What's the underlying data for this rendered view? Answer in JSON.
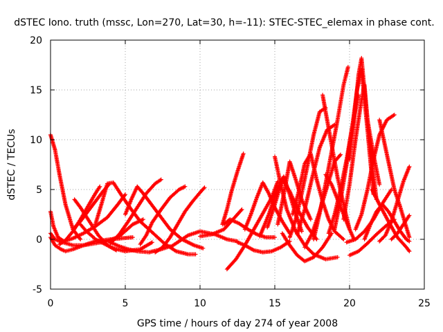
{
  "chart_data": {
    "type": "scatter",
    "title": "dSTEC Iono. truth (mssc, Lon=270, Lat=30, h=-11): STEC-STEC_elemax in phase cont.",
    "xlabel": "GPS time / hours of day 274 of year 2008",
    "ylabel": "dSTEC  / TECUs",
    "xlim": [
      0,
      25
    ],
    "ylim": [
      -5,
      20
    ],
    "xticks": [
      "0",
      "5",
      "10",
      "15",
      "20",
      "25"
    ],
    "yticks": [
      "-5",
      "0",
      "5",
      "10",
      "15",
      "20"
    ],
    "grid": true,
    "marker": "plus",
    "color": "#ff0000",
    "series": [
      {
        "x": [
          0.0,
          0.3,
          0.6,
          1.0,
          1.5,
          2.0
        ],
        "y": [
          10.5,
          9.0,
          6.5,
          3.5,
          1.0,
          0.0
        ]
      },
      {
        "x": [
          0.0,
          0.2,
          0.5,
          0.9,
          1.5,
          2.2,
          3.0,
          3.8,
          4.5,
          5.0
        ],
        "y": [
          2.8,
          1.3,
          0.2,
          -0.2,
          0.1,
          0.6,
          1.3,
          2.2,
          3.5,
          4.5
        ]
      },
      {
        "x": [
          0.0,
          0.3,
          0.7,
          1.0,
          1.5,
          2.2,
          3.0,
          4.0,
          5.5
        ],
        "y": [
          0.2,
          -0.6,
          -1.0,
          -1.2,
          -1.0,
          -0.6,
          -0.2,
          0.0,
          0.2
        ]
      },
      {
        "x": [
          0.0,
          0.3,
          0.8,
          1.5,
          2.2,
          3.0,
          3.8,
          4.6,
          5.5,
          6.2
        ],
        "y": [
          0.6,
          0.0,
          -0.3,
          -0.6,
          -0.6,
          -0.4,
          -0.2,
          0.3,
          1.5,
          2.0
        ]
      },
      {
        "x": [
          0.6,
          1.0,
          1.5,
          2.0,
          2.5,
          3.0,
          3.3
        ],
        "y": [
          -0.5,
          -0.1,
          0.8,
          2.0,
          3.3,
          4.6,
          5.3
        ]
      },
      {
        "x": [
          1.5,
          2.0,
          2.5,
          3.0,
          3.5,
          3.9
        ],
        "y": [
          1.0,
          1.8,
          2.8,
          3.8,
          4.8,
          5.5
        ]
      },
      {
        "x": [
          1.6,
          2.0,
          2.6,
          3.2,
          3.8,
          4.4
        ],
        "y": [
          4.0,
          3.2,
          1.8,
          0.4,
          -0.6,
          -1.1
        ]
      },
      {
        "x": [
          2.0,
          2.4,
          2.8,
          3.0,
          3.4,
          3.8,
          4.2,
          5.0,
          6.0,
          6.8
        ],
        "y": [
          1.5,
          0.8,
          0.3,
          0.0,
          -0.3,
          -0.6,
          -0.9,
          -1.2,
          -1.0,
          -0.3
        ]
      },
      {
        "x": [
          3.0,
          3.4,
          3.8,
          4.2,
          4.8,
          5.4,
          6.0,
          6.8,
          7.6,
          8.4,
          9.2,
          9.7
        ],
        "y": [
          1.5,
          3.5,
          5.6,
          5.7,
          4.3,
          3.0,
          1.8,
          0.7,
          -0.4,
          -1.2,
          -1.5,
          -1.5
        ]
      },
      {
        "x": [
          4.0,
          4.6,
          5.2,
          5.8,
          6.4,
          7.0,
          7.4
        ],
        "y": [
          -0.4,
          0.5,
          1.8,
          3.2,
          4.6,
          5.6,
          6.0
        ]
      },
      {
        "x": [
          4.0,
          4.6,
          5.2,
          5.8,
          6.6,
          7.4,
          8.0
        ],
        "y": [
          -0.3,
          -0.7,
          -1.0,
          -1.2,
          -1.3,
          -1.0,
          -0.7
        ]
      },
      {
        "x": [
          5.0,
          5.4,
          5.8,
          6.2,
          6.8,
          7.4,
          8.0,
          8.8,
          9.6,
          10.2
        ],
        "y": [
          2.5,
          4.0,
          5.3,
          4.6,
          3.4,
          2.2,
          1.0,
          0.0,
          -0.6,
          -0.9
        ]
      },
      {
        "x": [
          6.0,
          6.4,
          6.8,
          7.4,
          8.0,
          8.6,
          9.0
        ],
        "y": [
          -0.5,
          0.4,
          1.7,
          3.0,
          4.2,
          5.0,
          5.3
        ]
      },
      {
        "x": [
          7.0,
          7.5,
          8.0,
          8.5,
          9.0,
          9.5,
          10.0,
          10.3
        ],
        "y": [
          -1.3,
          -0.8,
          0.2,
          1.5,
          2.8,
          3.8,
          4.7,
          5.2
        ]
      },
      {
        "x": [
          8.0,
          8.6,
          9.2,
          10.0,
          11.0,
          11.8,
          12.5
        ],
        "y": [
          -0.8,
          -0.2,
          0.4,
          0.8,
          0.5,
          0.0,
          -0.2
        ]
      },
      {
        "x": [
          10.0,
          10.8,
          11.6,
          12.2,
          12.8
        ],
        "y": [
          0.3,
          0.5,
          1.0,
          2.0,
          3.0
        ]
      },
      {
        "x": [
          11.5,
          11.8,
          12.1,
          12.5,
          12.9
        ],
        "y": [
          1.5,
          3.0,
          4.8,
          6.8,
          8.6
        ]
      },
      {
        "x": [
          11.6,
          12.0,
          12.6,
          13.2,
          13.8,
          14.4,
          15.0
        ],
        "y": [
          1.5,
          2.0,
          1.6,
          1.0,
          0.5,
          0.2,
          0.2
        ]
      },
      {
        "x": [
          11.8,
          12.4,
          13.0,
          13.6,
          14.2,
          14.8,
          15.2
        ],
        "y": [
          -3.0,
          -2.0,
          -0.6,
          1.0,
          2.6,
          4.2,
          5.8
        ]
      },
      {
        "x": [
          12.5,
          13.0,
          13.6,
          14.2,
          14.8,
          15.4,
          16.0
        ],
        "y": [
          -0.3,
          -0.6,
          -1.1,
          -1.3,
          -1.2,
          -0.8,
          -0.2
        ]
      },
      {
        "x": [
          13.0,
          13.4,
          13.8,
          14.2,
          14.6,
          15.0,
          15.5,
          16.0
        ],
        "y": [
          1.0,
          2.5,
          4.2,
          5.7,
          4.6,
          3.2,
          1.8,
          0.6
        ]
      },
      {
        "x": [
          14.0,
          14.6,
          15.2,
          15.6,
          16.0,
          16.4,
          16.8
        ],
        "y": [
          0.3,
          2.5,
          5.2,
          6.3,
          4.5,
          2.5,
          0.8
        ]
      },
      {
        "x": [
          14.5,
          15.0,
          15.5,
          16.0,
          16.6,
          17.2,
          17.8
        ],
        "y": [
          1.2,
          3.5,
          6.0,
          4.8,
          2.8,
          1.2,
          0.0
        ]
      },
      {
        "x": [
          15.0,
          15.4,
          15.8,
          16.4,
          17.0,
          17.6,
          18.4,
          19.2
        ],
        "y": [
          8.3,
          5.5,
          3.0,
          0.8,
          -0.6,
          -1.5,
          -2.0,
          -1.8
        ]
      },
      {
        "x": [
          15.2,
          15.6,
          16.0,
          16.4,
          16.8,
          17.4
        ],
        "y": [
          1.5,
          4.5,
          7.8,
          6.0,
          4.0,
          2.0
        ]
      },
      {
        "x": [
          15.5,
          16.0,
          16.5,
          17.0,
          17.6,
          18.2,
          18.8
        ],
        "y": [
          0.6,
          -0.6,
          -1.6,
          -2.2,
          -1.8,
          -0.8,
          0.6
        ]
      },
      {
        "x": [
          16.0,
          16.4,
          16.8,
          17.2,
          17.6,
          18.0,
          18.4
        ],
        "y": [
          0.2,
          2.0,
          4.6,
          7.5,
          10.5,
          12.8,
          13.2
        ]
      },
      {
        "x": [
          16.2,
          16.6,
          17.0,
          17.4,
          17.8,
          18.2,
          18.6,
          19.0,
          19.6
        ],
        "y": [
          2.5,
          4.8,
          7.6,
          8.6,
          6.0,
          3.8,
          2.0,
          0.8,
          0.0
        ]
      },
      {
        "x": [
          16.5,
          17.0,
          17.5,
          18.0,
          18.5,
          19.0
        ],
        "y": [
          0.5,
          3.0,
          6.2,
          9.2,
          11.0,
          11.5
        ]
      },
      {
        "x": [
          17.0,
          17.5,
          18.0,
          18.6,
          19.0,
          19.4
        ],
        "y": [
          -0.8,
          0.6,
          2.8,
          5.8,
          7.8,
          8.5
        ]
      },
      {
        "x": [
          17.6,
          18.0,
          18.4,
          18.8,
          19.2,
          19.6,
          19.9
        ],
        "y": [
          0.0,
          2.6,
          5.6,
          8.8,
          12.0,
          15.5,
          17.3
        ]
      },
      {
        "x": [
          18.2,
          18.4,
          18.8,
          19.2,
          19.6,
          20.0
        ],
        "y": [
          14.5,
          12.8,
          9.5,
          6.2,
          3.5,
          1.0
        ]
      },
      {
        "x": [
          18.4,
          18.8,
          19.2,
          19.6,
          20.0,
          20.3
        ],
        "y": [
          6.5,
          5.5,
          4.0,
          2.5,
          1.0,
          0.0
        ]
      },
      {
        "x": [
          18.6,
          19.0,
          19.4,
          19.8,
          20.2,
          20.6
        ],
        "y": [
          0.6,
          2.5,
          5.0,
          8.0,
          11.5,
          14.5
        ]
      },
      {
        "x": [
          19.0,
          19.4,
          19.8,
          20.2,
          20.5,
          20.8,
          21.2,
          21.6
        ],
        "y": [
          1.0,
          4.0,
          7.5,
          11.5,
          15.0,
          17.0,
          11.0,
          4.5
        ]
      },
      {
        "x": [
          19.6,
          20.0,
          20.4,
          20.8,
          21.0,
          21.2,
          21.6,
          22.0
        ],
        "y": [
          2.0,
          5.5,
          10.0,
          14.0,
          15.5,
          12.0,
          8.5,
          5.5
        ]
      },
      {
        "x": [
          20.0,
          20.3,
          20.6,
          20.8,
          21.0,
          21.4,
          21.8
        ],
        "y": [
          8.0,
          12.0,
          16.5,
          18.2,
          15.0,
          9.0,
          4.0
        ]
      },
      {
        "x": [
          20.4,
          20.8,
          21.2,
          21.6,
          22.0,
          22.5,
          23.0
        ],
        "y": [
          1.0,
          2.5,
          5.0,
          8.0,
          10.5,
          12.0,
          12.5
        ]
      },
      {
        "x": [
          19.8,
          20.4,
          21.0,
          21.6,
          22.2,
          22.8
        ],
        "y": [
          -0.3,
          0.0,
          0.8,
          2.0,
          3.6,
          5.0
        ]
      },
      {
        "x": [
          20.0,
          20.6,
          21.2,
          21.8,
          22.4,
          23.0
        ],
        "y": [
          -1.6,
          -1.2,
          -0.4,
          0.5,
          1.3,
          2.0
        ]
      },
      {
        "x": [
          21.0,
          21.4,
          21.8,
          22.2,
          22.6,
          23.0,
          23.4,
          23.8,
          24.0
        ],
        "y": [
          0.0,
          1.5,
          2.8,
          3.5,
          2.8,
          1.8,
          0.8,
          0.0,
          -0.2
        ]
      },
      {
        "x": [
          22.0,
          22.5,
          23.0,
          23.4,
          23.8,
          24.0
        ],
        "y": [
          12.0,
          8.5,
          5.0,
          3.2,
          1.2,
          0.2
        ]
      },
      {
        "x": [
          21.5,
          22.0,
          22.6,
          23.2,
          23.8,
          24.0
        ],
        "y": [
          5.0,
          3.5,
          1.8,
          0.2,
          -0.8,
          -1.2
        ]
      },
      {
        "x": [
          22.0,
          22.4,
          22.8,
          23.2,
          23.6,
          24.0
        ],
        "y": [
          -0.2,
          0.4,
          1.8,
          3.8,
          5.8,
          7.3
        ]
      },
      {
        "x": [
          22.8,
          23.2,
          23.6,
          24.0
        ],
        "y": [
          0.0,
          0.6,
          1.5,
          2.4
        ]
      }
    ]
  }
}
